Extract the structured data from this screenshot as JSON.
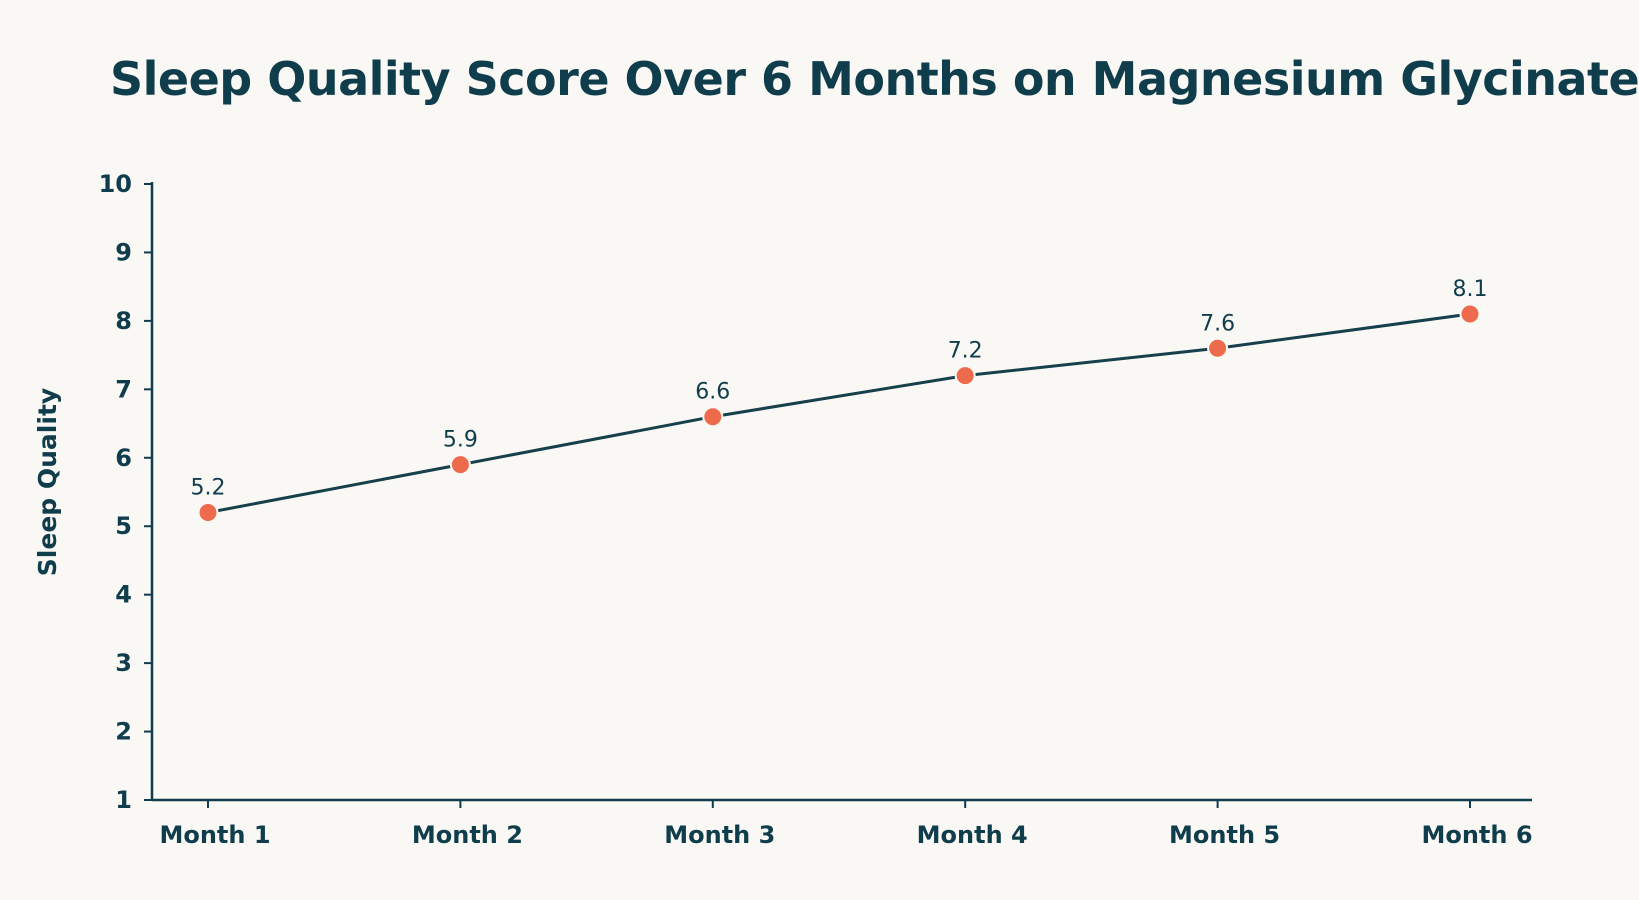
{
  "chart_data": {
    "type": "line",
    "title": "Sleep Quality Score Over 6 Months on Magnesium Glycinate",
    "xlabel": "",
    "ylabel": "Sleep Quality",
    "categories": [
      "Month 1",
      "Month 2",
      "Month 3",
      "Month 4",
      "Month 5",
      "Month 6"
    ],
    "values": [
      5.2,
      5.9,
      6.6,
      7.2,
      7.6,
      8.1
    ],
    "data_labels": [
      "5.2",
      "5.9",
      "6.6",
      "7.2",
      "7.6",
      "8.1"
    ],
    "ylim": [
      1,
      10
    ],
    "yticks": [
      "1",
      "2",
      "3",
      "4",
      "5",
      "6",
      "7",
      "8",
      "9",
      "10"
    ],
    "grid": false,
    "legend": "none"
  },
  "colors": {
    "background": "#faf8f4",
    "text": "#0f3d4c",
    "line": "#16404c",
    "marker": "#ee6a4d"
  }
}
